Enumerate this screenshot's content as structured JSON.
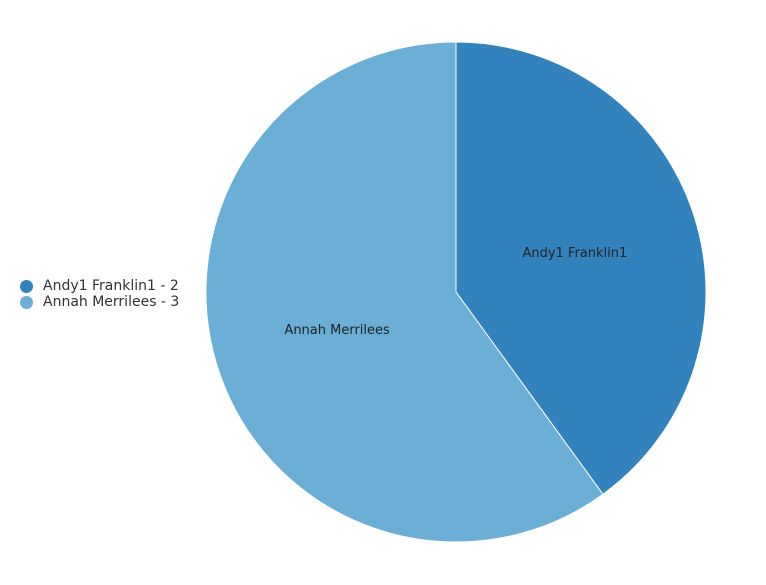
{
  "chart_data": {
    "type": "pie",
    "title": "",
    "slices": [
      {
        "label": "Andy1 Franklin1",
        "value": 2,
        "legend_text": "Andy1 Franklin1 - 2",
        "color": "#3182bd"
      },
      {
        "label": "Annah Merrilees",
        "value": 3,
        "legend_text": "Annah Merrilees - 3",
        "color": "#6baed6"
      }
    ],
    "legend": {
      "placement": "left"
    },
    "start_angle": "top",
    "direction": "clockwise"
  }
}
